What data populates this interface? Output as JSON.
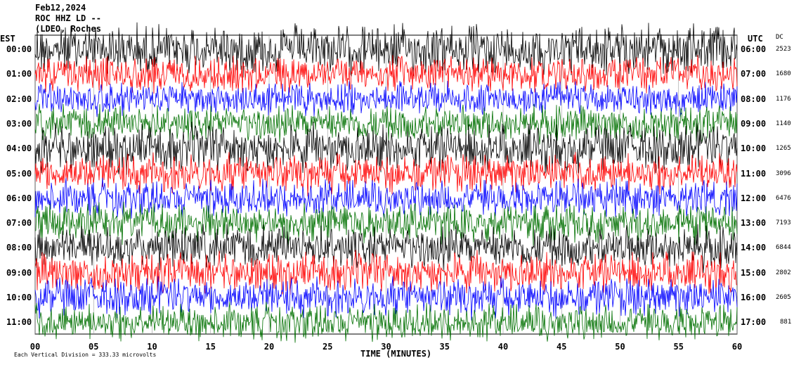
{
  "chart_data": {
    "type": "line",
    "title": "Feb12,2024",
    "station": "ROC HHZ LD --",
    "network": "(LDEO, Roches",
    "left_axis_label": "EST",
    "right_axis_label": "UTC",
    "dc_label": "DC",
    "xlabel": "TIME (MINUTES)",
    "xlim": [
      0,
      60
    ],
    "x_ticks": [
      "00",
      "05",
      "10",
      "15",
      "20",
      "25",
      "30",
      "35",
      "40",
      "45",
      "50",
      "55",
      "60"
    ],
    "trace_colors": [
      "#000000",
      "#ff0000",
      "#0000ff",
      "#007000"
    ],
    "rows": [
      {
        "est": "00:00",
        "utc": "06:00",
        "dc": "2523"
      },
      {
        "est": "01:00",
        "utc": "07:00",
        "dc": "1680"
      },
      {
        "est": "02:00",
        "utc": "08:00",
        "dc": "1176"
      },
      {
        "est": "03:00",
        "utc": "09:00",
        "dc": "1140"
      },
      {
        "est": "04:00",
        "utc": "10:00",
        "dc": "1265"
      },
      {
        "est": "05:00",
        "utc": "11:00",
        "dc": "3096"
      },
      {
        "est": "06:00",
        "utc": "12:00",
        "dc": "6476"
      },
      {
        "est": "07:00",
        "utc": "13:00",
        "dc": "7193"
      },
      {
        "est": "08:00",
        "utc": "14:00",
        "dc": "6844"
      },
      {
        "est": "09:00",
        "utc": "15:00",
        "dc": "2802"
      },
      {
        "est": "10:00",
        "utc": "16:00",
        "dc": "2605"
      },
      {
        "est": "11:00",
        "utc": "17:00",
        "dc": "881"
      }
    ],
    "footer": "Each Vertical Division =  333.33 microvolts"
  }
}
